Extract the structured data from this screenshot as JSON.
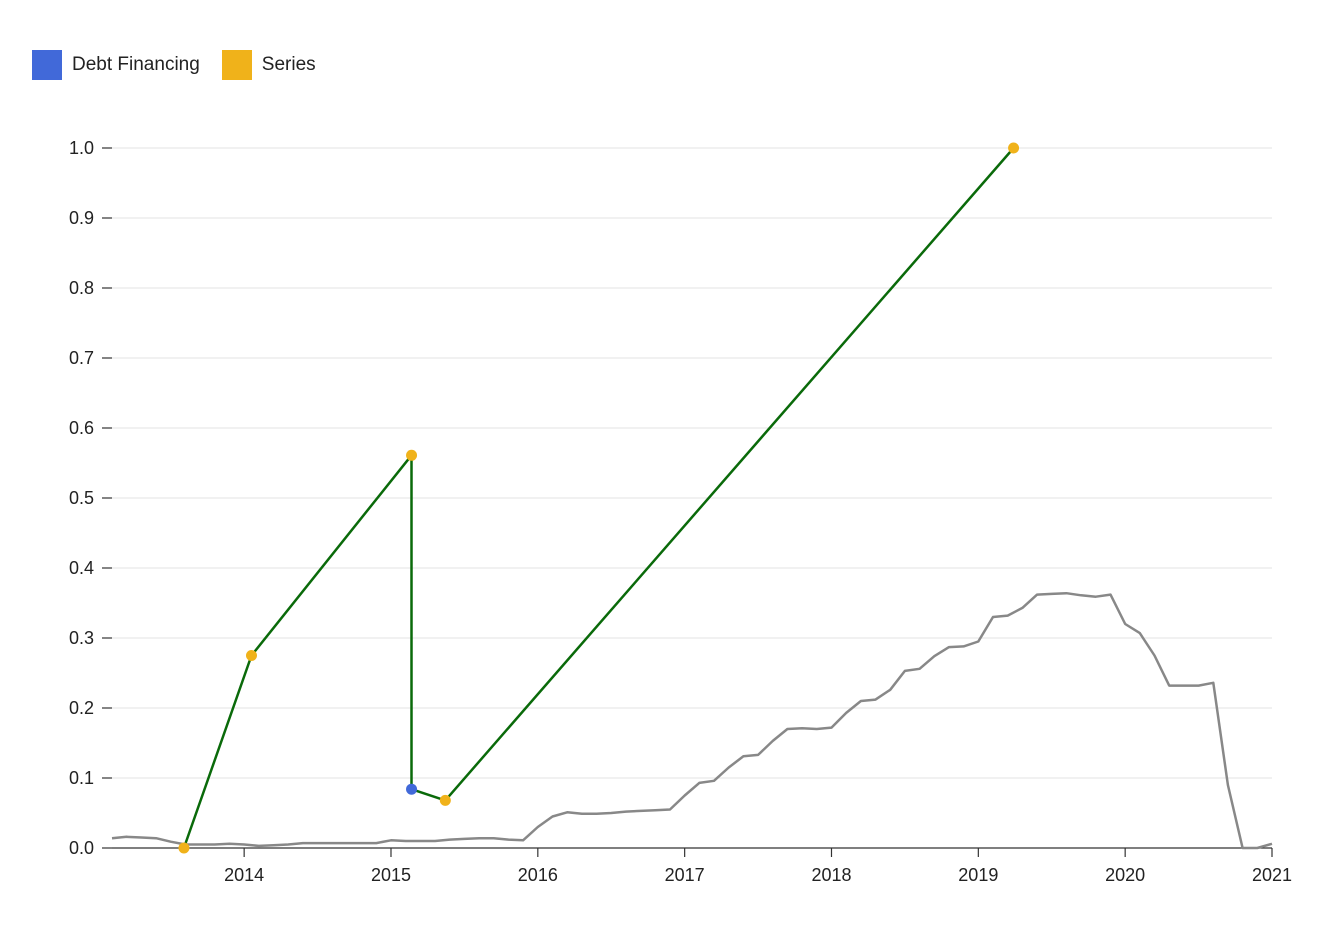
{
  "chart_data": {
    "type": "line",
    "title": "",
    "xlabel": "",
    "ylabel": "",
    "xlim": [
      2013.1,
      2021.0
    ],
    "ylim": [
      0,
      1.0
    ],
    "grid": true,
    "legend_position": "top-left",
    "y_ticks": [
      "0.0",
      "0.1",
      "0.2",
      "0.3",
      "0.4",
      "0.5",
      "0.6",
      "0.7",
      "0.8",
      "0.9",
      "1.0"
    ],
    "x_ticks": [
      {
        "label": "2014",
        "value": 2014
      },
      {
        "label": "2015",
        "value": 2015
      },
      {
        "label": "2016",
        "value": 2016
      },
      {
        "label": "2017",
        "value": 2017
      },
      {
        "label": "2018",
        "value": 2018
      },
      {
        "label": "2019",
        "value": 2019
      },
      {
        "label": "2020",
        "value": 2020
      },
      {
        "label": "2021",
        "value": 2021
      }
    ],
    "legend": [
      {
        "label": "Debt Financing",
        "color": "#4169d9"
      },
      {
        "label": "Series",
        "color": "#f0b21a"
      }
    ],
    "funding_line": {
      "color": "#0a6a0a",
      "points": [
        {
          "x": 2013.59,
          "y": 0.0,
          "type": "Series"
        },
        {
          "x": 2014.05,
          "y": 0.275,
          "type": "Series"
        },
        {
          "x": 2015.14,
          "y": 0.561,
          "type": "Series"
        },
        {
          "x": 2015.14,
          "y": 0.084,
          "type": "Debt Financing"
        },
        {
          "x": 2015.37,
          "y": 0.068,
          "type": "Series"
        },
        {
          "x": 2019.24,
          "y": 1.0,
          "type": "Series"
        }
      ]
    },
    "background_series": {
      "color": "#888888",
      "x": [
        2013.1,
        2013.2,
        2013.3,
        2013.4,
        2013.5,
        2013.6,
        2013.7,
        2013.8,
        2013.9,
        2014.0,
        2014.1,
        2014.2,
        2014.3,
        2014.4,
        2014.5,
        2014.6,
        2014.7,
        2014.8,
        2014.9,
        2015.0,
        2015.1,
        2015.2,
        2015.3,
        2015.4,
        2015.5,
        2015.6,
        2015.7,
        2015.8,
        2015.9,
        2016.0,
        2016.1,
        2016.2,
        2016.3,
        2016.4,
        2016.5,
        2016.6,
        2016.7,
        2016.8,
        2016.9,
        2017.0,
        2017.1,
        2017.2,
        2017.3,
        2017.4,
        2017.5,
        2017.6,
        2017.7,
        2017.8,
        2017.9,
        2018.0,
        2018.1,
        2018.2,
        2018.3,
        2018.4,
        2018.5,
        2018.6,
        2018.7,
        2018.8,
        2018.9,
        2019.0,
        2019.1,
        2019.2,
        2019.3,
        2019.4,
        2019.5,
        2019.6,
        2019.7,
        2019.8,
        2019.9,
        2020.0,
        2020.1,
        2020.2,
        2020.3,
        2020.4,
        2020.5,
        2020.6,
        2020.7,
        2020.8,
        2020.9,
        2021.0
      ],
      "y": [
        0.014,
        0.016,
        0.015,
        0.014,
        0.009,
        0.005,
        0.005,
        0.005,
        0.006,
        0.005,
        0.003,
        0.004,
        0.005,
        0.007,
        0.007,
        0.007,
        0.007,
        0.007,
        0.007,
        0.011,
        0.01,
        0.01,
        0.01,
        0.012,
        0.013,
        0.014,
        0.014,
        0.012,
        0.011,
        0.03,
        0.045,
        0.051,
        0.049,
        0.049,
        0.05,
        0.052,
        0.053,
        0.054,
        0.055,
        0.075,
        0.093,
        0.096,
        0.115,
        0.131,
        0.133,
        0.153,
        0.17,
        0.171,
        0.17,
        0.172,
        0.193,
        0.21,
        0.212,
        0.226,
        0.253,
        0.256,
        0.274,
        0.287,
        0.288,
        0.295,
        0.33,
        0.332,
        0.343,
        0.362,
        0.363,
        0.364,
        0.361,
        0.359,
        0.362,
        0.32,
        0.307,
        0.275,
        0.232,
        0.232,
        0.232,
        0.236,
        0.09,
        0.0,
        0.0,
        0.006
      ]
    }
  }
}
